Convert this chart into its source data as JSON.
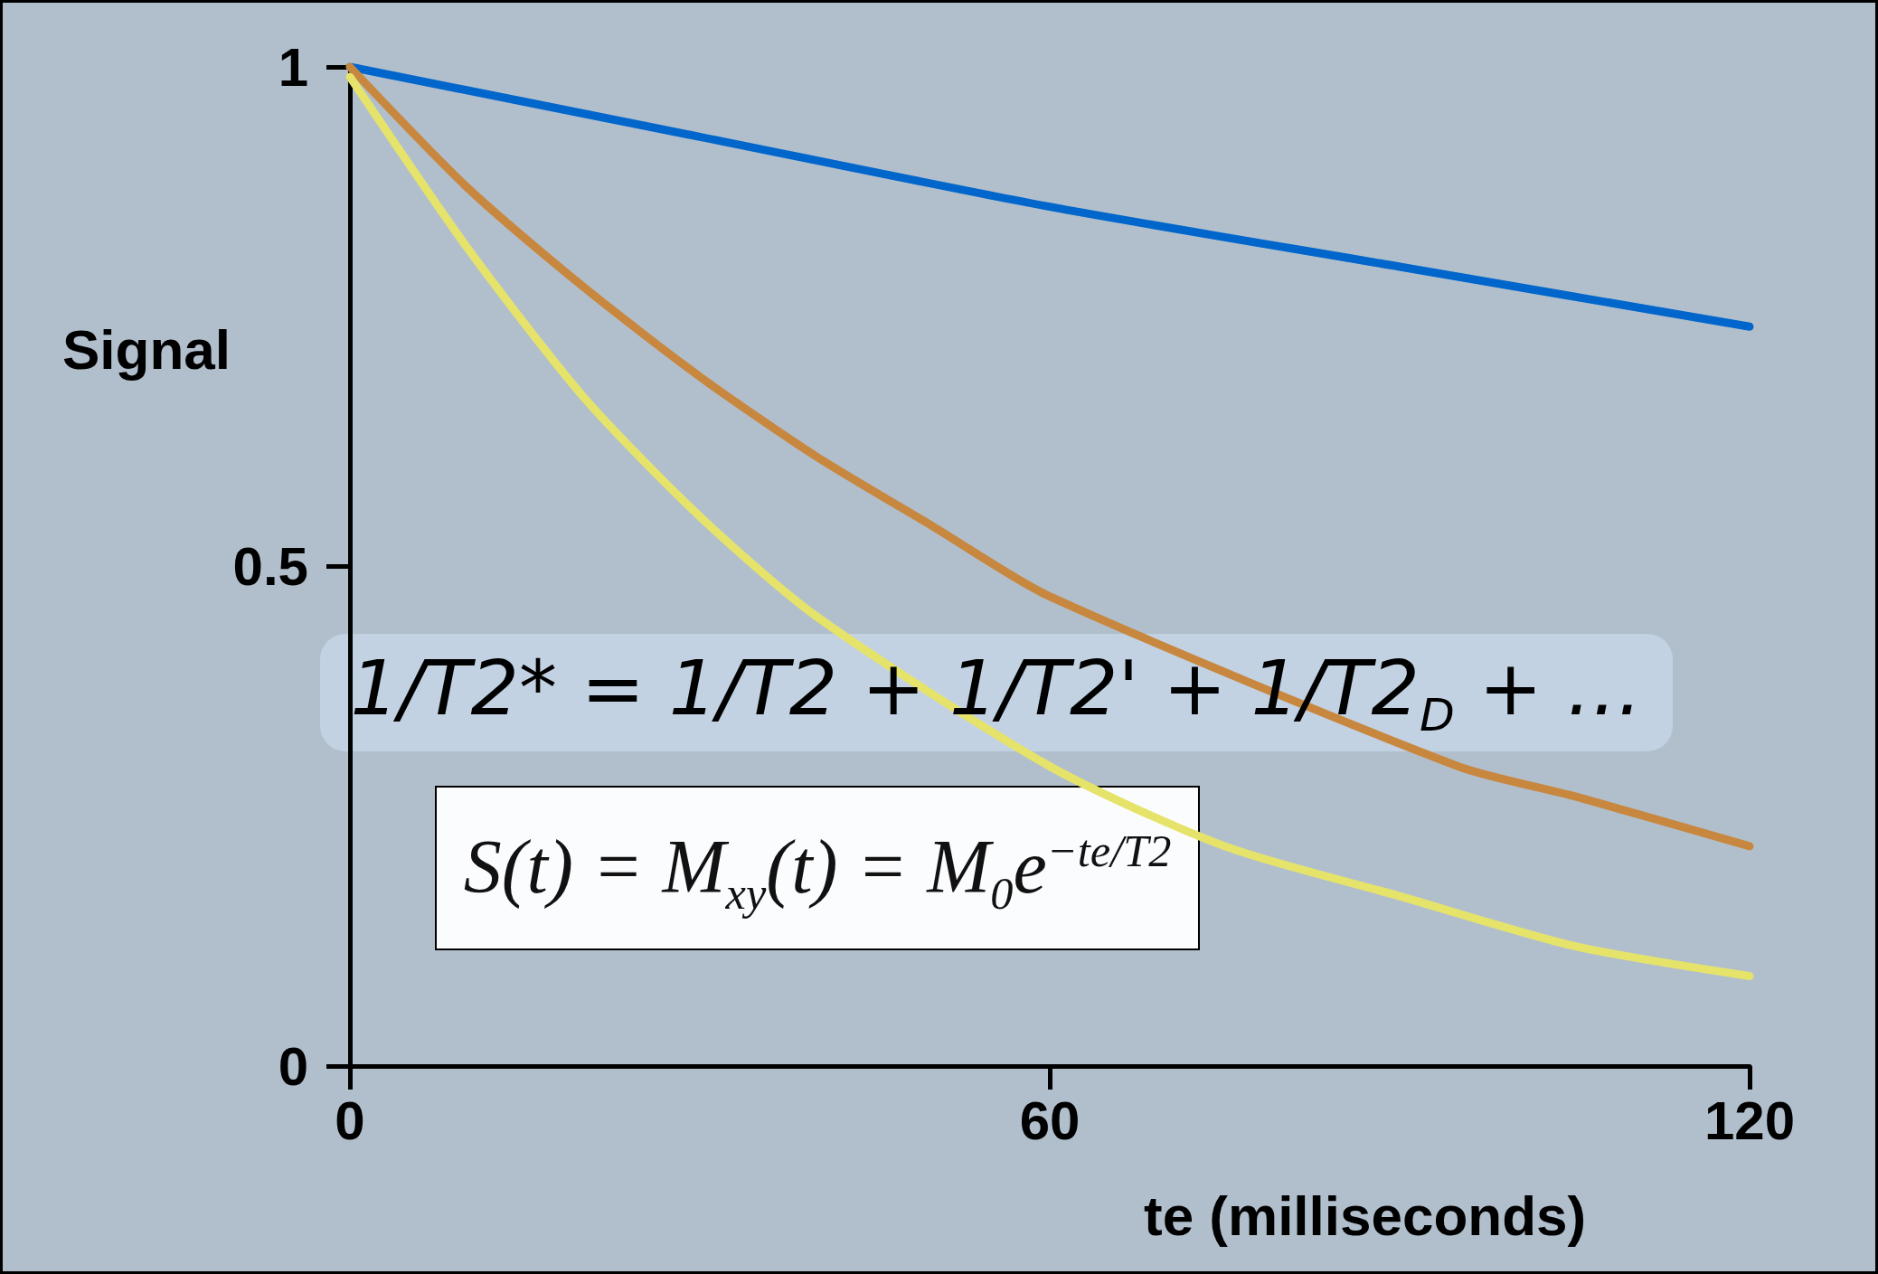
{
  "chart_data": {
    "type": "line",
    "xlabel": "te (milliseconds)",
    "ylabel": "Signal",
    "series": [
      {
        "color": "#0066cc",
        "x": [
          0,
          30,
          60,
          90,
          120
        ],
        "values": [
          1,
          0.93,
          0.86,
          0.8,
          0.74
        ]
      },
      {
        "color": "#c8873f",
        "x": [
          0,
          10,
          20,
          30,
          40,
          50,
          60,
          95,
          105,
          120
        ],
        "values": [
          1,
          0.88,
          0.78,
          0.69,
          0.61,
          0.54,
          0.47,
          0.3,
          0.27,
          0.22
        ]
      },
      {
        "color": "#e6e36b",
        "x": [
          0,
          10,
          20,
          30,
          40,
          60,
          75,
          90,
          105,
          120
        ],
        "values": [
          0.99,
          0.82,
          0.67,
          0.55,
          0.45,
          0.3,
          0.22,
          0.17,
          0.12,
          0.09
        ]
      }
    ],
    "xlim": [
      0,
      120
    ],
    "xticks": [
      0,
      60,
      120
    ],
    "ylim": [
      0,
      1
    ],
    "yticks": [
      0,
      0.5,
      1
    ],
    "grid": false,
    "marker": "none",
    "line_style": "solid",
    "annotations": [
      "1/T2* = 1/T2 + 1/T2' + 1/T2$_{D}$ + …",
      "S(t) = M$_{xy}$(t) = M$_{0}$e$^{−te/T2}$"
    ]
  }
}
